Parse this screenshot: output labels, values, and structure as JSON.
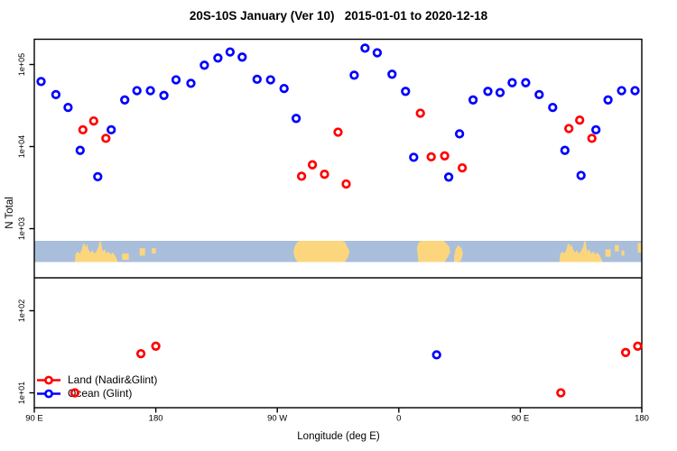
{
  "title": "20S-10S January (Ver 10)   2015-01-01 to 2020-12-18",
  "colors": {
    "land_series": "#ff0000",
    "ocean_series": "#0000ff",
    "map_ocean": "#a9bedb",
    "map_land": "#fcd67d",
    "axis": "#000000",
    "separator": "#2b2b2b",
    "background": "#ffffff"
  },
  "legend": {
    "items": [
      {
        "label": "Land (Nadir&Glint)",
        "color": "#ff0000"
      },
      {
        "label": "Ocean (Glint)",
        "color": "#0000ff"
      }
    ]
  },
  "chart_data": {
    "type": "scatter",
    "title": "20S-10S January (Ver 10)   2015-01-01 to 2020-12-18",
    "xlabel": "Longitude (deg E)",
    "ylabel": "N Total",
    "x_axis": {
      "range_deg_east": [
        90,
        540
      ],
      "ticks": [
        {
          "lon": 90,
          "label": "90 E"
        },
        {
          "lon": 180,
          "label": "180"
        },
        {
          "lon": 270,
          "label": "90 W"
        },
        {
          "lon": 360,
          "label": "0"
        },
        {
          "lon": 450,
          "label": "90 E"
        },
        {
          "lon": 540,
          "label": "180"
        }
      ]
    },
    "y_axis": {
      "scale": "log10",
      "ticks": [
        {
          "value": 100000,
          "label": "1e+05"
        },
        {
          "value": 10000,
          "label": "1e+04"
        },
        {
          "value": 1000,
          "label": "1e+03"
        },
        {
          "value": 100,
          "label": "1e+02"
        },
        {
          "value": 10,
          "label": "1e+01"
        }
      ]
    },
    "series": [
      {
        "name": "Land (Nadir&Glint)",
        "color": "#ff0000",
        "marker": "open-circle",
        "points": [
          [
            120,
            10
          ],
          [
            126,
            16000
          ],
          [
            134,
            20500
          ],
          [
            143,
            12600
          ],
          [
            169,
            30
          ],
          [
            180,
            37
          ],
          [
            288,
            4350
          ],
          [
            296,
            6000
          ],
          [
            305,
            4600
          ],
          [
            315,
            15000
          ],
          [
            321,
            3500
          ],
          [
            376,
            25500
          ],
          [
            384,
            7500
          ],
          [
            394,
            7700
          ],
          [
            407,
            5500
          ],
          [
            480,
            10
          ],
          [
            486,
            16600
          ],
          [
            494,
            21000
          ],
          [
            503,
            12600
          ],
          [
            528,
            31
          ],
          [
            537,
            37
          ]
        ]
      },
      {
        "name": "Ocean (Glint)",
        "color": "#0000ff",
        "marker": "open-circle",
        "points": [
          [
            95,
            62000
          ],
          [
            106,
            43000
          ],
          [
            115,
            30000
          ],
          [
            124,
            9000
          ],
          [
            137,
            4300
          ],
          [
            147,
            16000
          ],
          [
            157,
            37000
          ],
          [
            166,
            48000
          ],
          [
            176,
            48000
          ],
          [
            186,
            42000
          ],
          [
            195,
            65000
          ],
          [
            206,
            59000
          ],
          [
            216,
            98000
          ],
          [
            226,
            120000
          ],
          [
            235,
            142000
          ],
          [
            244,
            123000
          ],
          [
            255,
            66000
          ],
          [
            265,
            65000
          ],
          [
            275,
            51000
          ],
          [
            284,
            22000
          ],
          [
            327,
            74000
          ],
          [
            335,
            158000
          ],
          [
            344,
            139000
          ],
          [
            355,
            76000
          ],
          [
            365,
            47000
          ],
          [
            371,
            7400
          ],
          [
            388,
            29
          ],
          [
            397,
            4250
          ],
          [
            405,
            14300
          ],
          [
            415,
            37000
          ],
          [
            426,
            47000
          ],
          [
            435,
            45500
          ],
          [
            444,
            60000
          ],
          [
            454,
            60000
          ],
          [
            464,
            43000
          ],
          [
            474,
            30000
          ],
          [
            483,
            9000
          ],
          [
            495,
            4450
          ],
          [
            506,
            16000
          ],
          [
            515,
            37000
          ],
          [
            525,
            48000
          ],
          [
            535,
            48000
          ]
        ]
      }
    ],
    "map_strip": {
      "description": "world coastline band 20S-10S drawn across plot",
      "ocean_color": "#a9bedb",
      "land_color": "#fcd67d",
      "land_polygons": [
        {
          "name": "australia-newguinea",
          "vertices": [
            [
              120,
              1
            ],
            [
              120.5,
              0.65
            ],
            [
              122,
              0.5
            ],
            [
              123.5,
              0.6
            ],
            [
              125,
              0.45
            ],
            [
              126,
              0.2
            ],
            [
              127,
              0.1
            ],
            [
              128,
              0.3
            ],
            [
              129,
              0.15
            ],
            [
              130,
              0.4
            ],
            [
              131.5,
              0.55
            ],
            [
              133,
              0.45
            ],
            [
              134.5,
              0.6
            ],
            [
              136,
              0.5
            ],
            [
              137.5,
              0.3
            ],
            [
              138.5,
              0
            ],
            [
              139.5,
              0.05
            ],
            [
              140.5,
              0.5
            ],
            [
              142,
              0.4
            ],
            [
              143.5,
              0.6
            ],
            [
              145,
              0.5
            ],
            [
              146.5,
              0.65
            ],
            [
              148,
              0.55
            ],
            [
              150,
              0.7
            ],
            [
              152,
              1
            ]
          ]
        },
        {
          "name": "south-america",
          "vertices": [
            [
              282,
              0.55
            ],
            [
              283,
              0.25
            ],
            [
              285,
              0.05
            ],
            [
              287,
              0
            ],
            [
              300,
              0
            ],
            [
              310,
              0
            ],
            [
              318,
              0
            ],
            [
              320,
              0.05
            ],
            [
              322,
              0.3
            ],
            [
              323.5,
              0.5
            ],
            [
              322.5,
              0.75
            ],
            [
              320,
              1
            ],
            [
              285,
              1
            ],
            [
              283,
              0.8
            ]
          ]
        },
        {
          "name": "africa",
          "vertices": [
            [
              373.5,
              0.35
            ],
            [
              374.5,
              0.1
            ],
            [
              376.5,
              0
            ],
            [
              393,
              0
            ],
            [
              395,
              0.1
            ],
            [
              397.5,
              0.3
            ],
            [
              398,
              0.55
            ],
            [
              396,
              0.8
            ],
            [
              394,
              1
            ],
            [
              374.5,
              1
            ]
          ]
        },
        {
          "name": "madagascar",
          "vertices": [
            [
              401,
              0.75
            ],
            [
              402,
              0.4
            ],
            [
              404,
              0.2
            ],
            [
              406.5,
              0.35
            ],
            [
              407.5,
              0.6
            ],
            [
              406,
              0.95
            ],
            [
              403,
              1
            ],
            [
              401,
              1
            ]
          ]
        },
        {
          "name": "australia-newguinea-repeat",
          "vertices": [
            [
              479,
              1
            ],
            [
              479.5,
              0.65
            ],
            [
              481,
              0.5
            ],
            [
              482.5,
              0.6
            ],
            [
              484,
              0.45
            ],
            [
              485,
              0.2
            ],
            [
              486,
              0.1
            ],
            [
              487,
              0.3
            ],
            [
              488,
              0.15
            ],
            [
              489,
              0.4
            ],
            [
              490.5,
              0.55
            ],
            [
              492,
              0.45
            ],
            [
              493.5,
              0.6
            ],
            [
              495,
              0.5
            ],
            [
              496.5,
              0.3
            ],
            [
              497.5,
              0
            ],
            [
              498.5,
              0.05
            ],
            [
              499.5,
              0.5
            ],
            [
              501,
              0.4
            ],
            [
              502.5,
              0.6
            ],
            [
              504,
              0.5
            ],
            [
              505.5,
              0.65
            ],
            [
              507,
              0.55
            ],
            [
              509,
              0.7
            ],
            [
              511,
              1
            ]
          ]
        }
      ],
      "island_rects": [
        {
          "name": "islands-155e",
          "lon0": 155,
          "lon1": 160,
          "y0": 0.6,
          "y1": 0.9
        },
        {
          "name": "islands-168e",
          "lon0": 168,
          "lon1": 172,
          "y0": 0.35,
          "y1": 0.7
        },
        {
          "name": "islands-fiji",
          "lon0": 177,
          "lon1": 180,
          "y0": 0.35,
          "y1": 0.6
        },
        {
          "name": "islands-155e-repeat",
          "lon0": 513,
          "lon1": 517,
          "y0": 0.4,
          "y1": 0.75
        },
        {
          "name": "islands-168e-repeat",
          "lon0": 520,
          "lon1": 523,
          "y0": 0.2,
          "y1": 0.5
        },
        {
          "name": "islands-coral-sea",
          "lon0": 525,
          "lon1": 527,
          "y0": 0.45,
          "y1": 0.7
        },
        {
          "name": "islands-fiji-repeat",
          "lon0": 537,
          "lon1": 540,
          "y0": 0.1,
          "y1": 0.55
        }
      ]
    }
  }
}
